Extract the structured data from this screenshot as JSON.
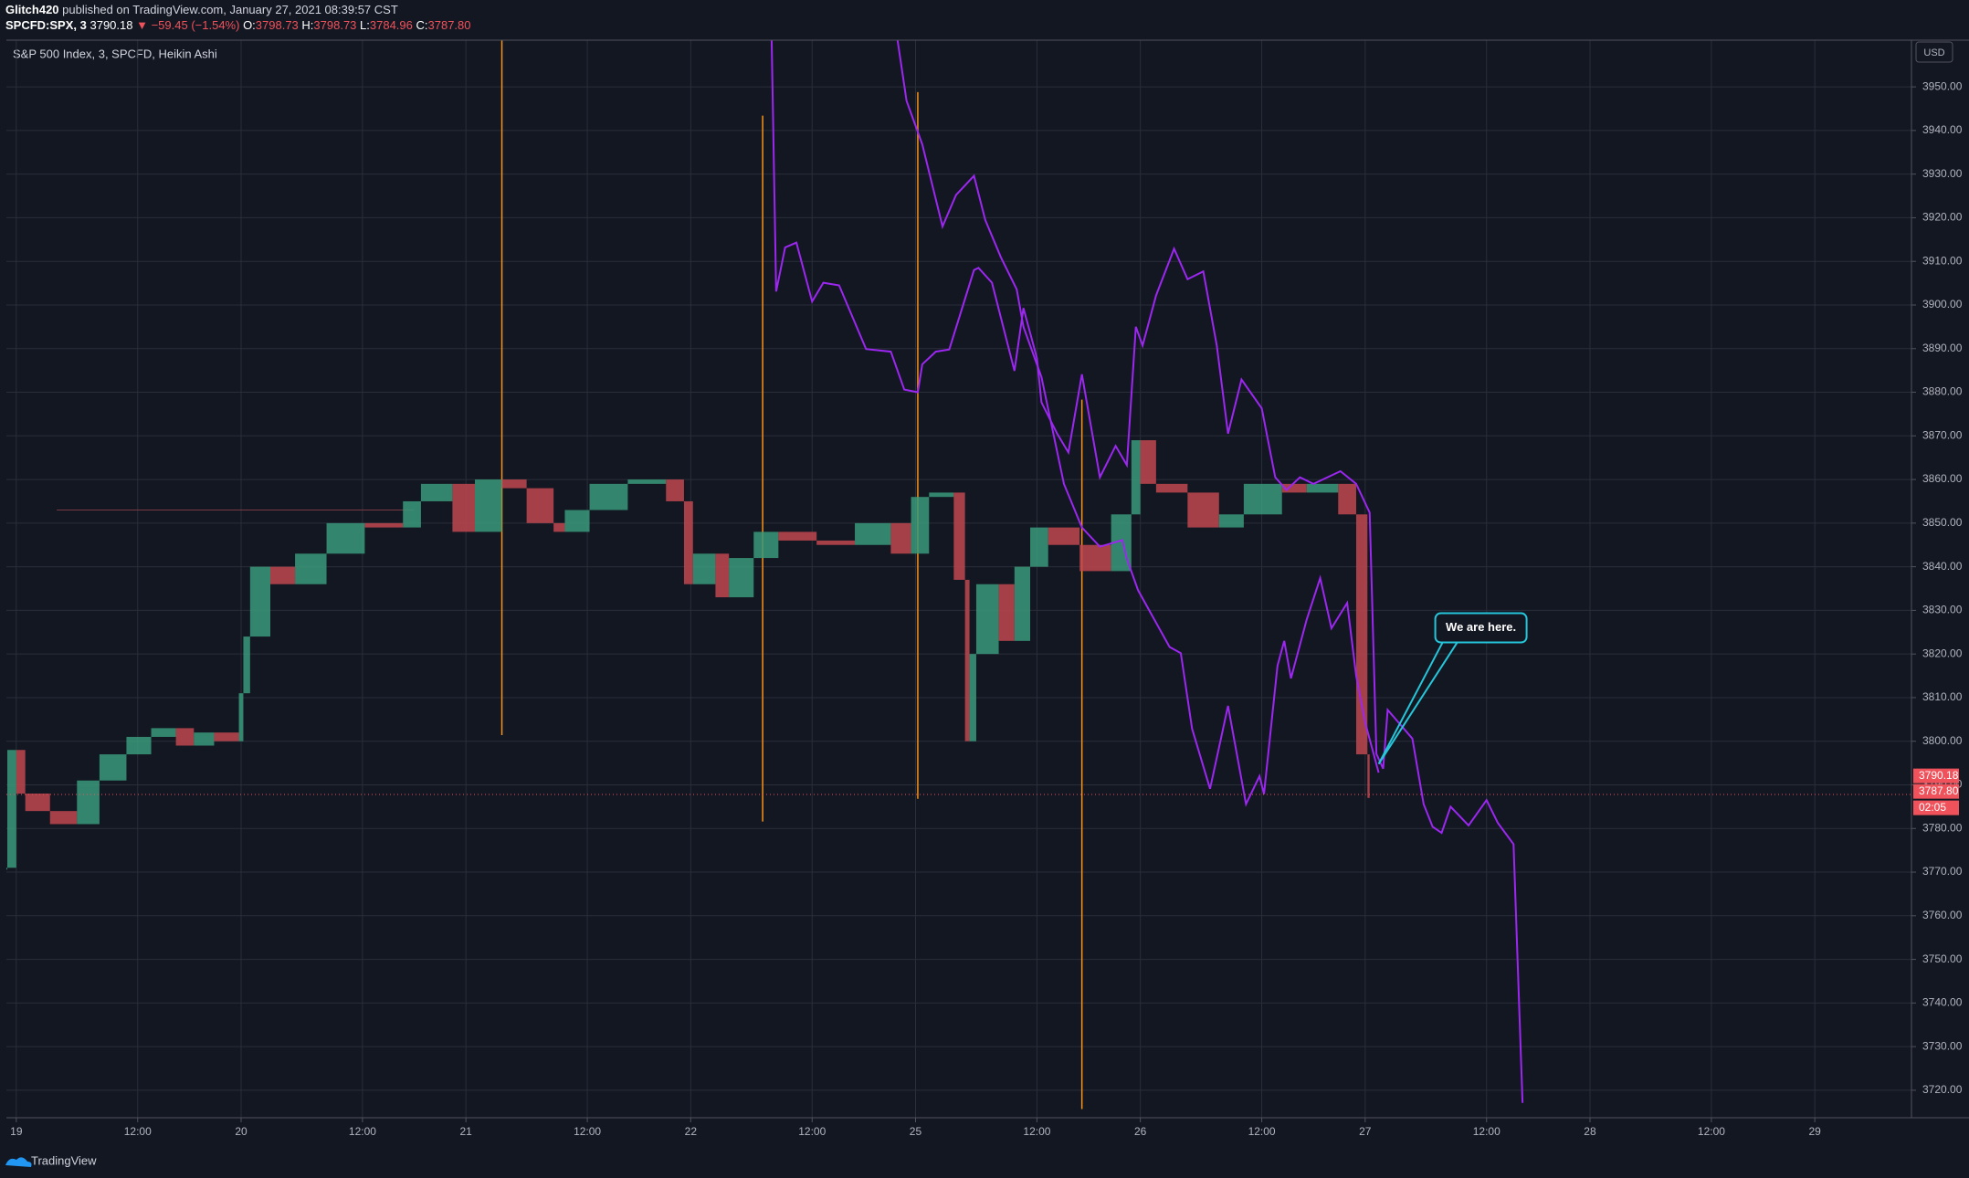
{
  "header": {
    "publisher": "Glitch420",
    "published": "published on TradingView.com, January 27, 2021 08:39:57 CST",
    "symbol": "SPCFD:SPX, 3",
    "price": "3790.18",
    "change": "▼ −59.45 (−1.54%)",
    "ohlc": [
      {
        "label": "O:",
        "value": "3798.73"
      },
      {
        "label": "H:",
        "value": "3798.73"
      },
      {
        "label": "L:",
        "value": "3784.96"
      },
      {
        "label": "C:",
        "value": "3787.80"
      }
    ]
  },
  "footer": {
    "brand": "TradingView"
  },
  "chart_data": {
    "type": "candlestick",
    "title": "S&P 500 Index, 3, SPCFD, Heikin Ashi",
    "currency": "USD",
    "grid": true,
    "up_color": "#3a9a7a",
    "down_color": "#c0474f",
    "xlim": [
      -0.044,
      8.43
    ],
    "ylim": [
      3713.7,
      3960.7
    ],
    "xticks": [
      {
        "value": 0,
        "label": "19"
      },
      {
        "value": 0.54,
        "label": "12:00"
      },
      {
        "value": 1,
        "label": "20"
      },
      {
        "value": 1.54,
        "label": "12:00"
      },
      {
        "value": 2,
        "label": "21"
      },
      {
        "value": 2.54,
        "label": "12:00"
      },
      {
        "value": 3,
        "label": "22"
      },
      {
        "value": 3.54,
        "label": "12:00"
      },
      {
        "value": 4,
        "label": "25"
      },
      {
        "value": 4.54,
        "label": "12:00"
      },
      {
        "value": 5,
        "label": "26"
      },
      {
        "value": 5.54,
        "label": "12:00"
      },
      {
        "value": 6,
        "label": "27"
      },
      {
        "value": 6.54,
        "label": "12:00"
      },
      {
        "value": 7,
        "label": "28"
      },
      {
        "value": 7.54,
        "label": "12:00"
      },
      {
        "value": 8,
        "label": "29"
      }
    ],
    "yticks": [
      {
        "value": 3720,
        "label": "3720.00"
      },
      {
        "value": 3730,
        "label": "3730.00"
      },
      {
        "value": 3740,
        "label": "3740.00"
      },
      {
        "value": 3750,
        "label": "3750.00"
      },
      {
        "value": 3760,
        "label": "3760.00"
      },
      {
        "value": 3770,
        "label": "3770.00"
      },
      {
        "value": 3780,
        "label": "3780.00"
      },
      {
        "value": 3790,
        "label": "3790.00"
      },
      {
        "value": 3800,
        "label": "3800.00"
      },
      {
        "value": 3810,
        "label": "3810.00"
      },
      {
        "value": 3820,
        "label": "3820.00"
      },
      {
        "value": 3830,
        "label": "3830.00"
      },
      {
        "value": 3840,
        "label": "3840.00"
      },
      {
        "value": 3850,
        "label": "3850.00"
      },
      {
        "value": 3860,
        "label": "3860.00"
      },
      {
        "value": 3870,
        "label": "3870.00"
      },
      {
        "value": 3880,
        "label": "3880.00"
      },
      {
        "value": 3890,
        "label": "3890.00"
      },
      {
        "value": 3900,
        "label": "3900.00"
      },
      {
        "value": 3910,
        "label": "3910.00"
      },
      {
        "value": 3920,
        "label": "3920.00"
      },
      {
        "value": 3930,
        "label": "3930.00"
      },
      {
        "value": 3940,
        "label": "3940.00"
      },
      {
        "value": 3950,
        "label": "3950.00"
      }
    ],
    "series": [
      {
        "kind": "candles",
        "x": [
          -0.04,
          0,
          0.04,
          0.15,
          0.27,
          0.37,
          0.49,
          0.6,
          0.71,
          0.79,
          0.88,
          0.99,
          1.01,
          1.04,
          1.13,
          1.24,
          1.38,
          1.55,
          1.72,
          1.8,
          1.94,
          2.04,
          2.16,
          2.27,
          2.39,
          2.44,
          2.55,
          2.72,
          2.89,
          2.97,
          3.01,
          3.11,
          3.17,
          3.28,
          3.39,
          3.56,
          3.73,
          3.89,
          3.98,
          4.06,
          4.17,
          4.22,
          4.24,
          4.27,
          4.37,
          4.44,
          4.51,
          4.59,
          4.73,
          4.87,
          4.96,
          5.0,
          5.07,
          5.21,
          5.35,
          5.46,
          5.63,
          5.74,
          5.88,
          5.96,
          6.01,
          6.02
        ],
        "values": [
          3771,
          3798,
          3788,
          3784,
          3781,
          3791,
          3797,
          3801,
          3803,
          3799,
          3802,
          3800,
          3811,
          3824,
          3840,
          3836,
          3843,
          3850,
          3849,
          3855,
          3859,
          3848,
          3860,
          3858,
          3850,
          3848,
          3853,
          3859,
          3860,
          3855,
          3836,
          3843,
          3833,
          3842,
          3848,
          3846,
          3845,
          3850,
          3843,
          3856,
          3857,
          3837,
          3800,
          3820,
          3836,
          3823,
          3840,
          3849,
          3845,
          3839,
          3852,
          3869,
          3859,
          3857,
          3849,
          3852,
          3859,
          3857,
          3859,
          3852,
          3797,
          3787
        ]
      },
      {
        "kind": "line",
        "color": "#9c27f0",
        "x": [
          3.36,
          3.38,
          3.42,
          3.47,
          3.54,
          3.59,
          3.66,
          3.78,
          3.89,
          3.95,
          4.01,
          4.03,
          4.09,
          4.15,
          4.26,
          4.28,
          4.34,
          4.44,
          4.48,
          4.54,
          4.56,
          4.63,
          4.68,
          4.74,
          4.82,
          4.89,
          4.94,
          4.98,
          5.01,
          5.07,
          5.15,
          5.21,
          5.28,
          5.34,
          5.39,
          5.45,
          5.54,
          5.6,
          5.65,
          5.71,
          5.77,
          5.89,
          5.96,
          6.02,
          6.05,
          6.08,
          6.1,
          6.21,
          6.26,
          6.3,
          6.34,
          6.38,
          6.46,
          6.54,
          6.59,
          6.66,
          6.7
        ],
        "values": [
          3960.7,
          3903.1,
          3913.2,
          3914.3,
          3900.8,
          3905.1,
          3904.5,
          3889.9,
          3889.3,
          3880.6,
          3880.0,
          3886.4,
          3889.3,
          3889.8,
          3908.0,
          3908.5,
          3905.1,
          3884.9,
          3899.3,
          3887.8,
          3877.7,
          3870.5,
          3866.2,
          3884.1,
          3860.5,
          3867.7,
          3863.3,
          3895.0,
          3890.7,
          3902.2,
          3912.9,
          3905.9,
          3907.7,
          3890.7,
          3870.5,
          3882.9,
          3876.3,
          3860.5,
          3857.6,
          3860.5,
          3859.0,
          3861.9,
          3859.0,
          3852.4,
          3797.1,
          3793.7,
          3807.2,
          3800.6,
          3785.6,
          3780.4,
          3779.0,
          3785.0,
          3780.7,
          3786.5,
          3781.3,
          3776.4,
          3717.1
        ]
      },
      {
        "kind": "line",
        "color": "#9c27f0",
        "x": [
          3.92,
          3.96,
          4.03,
          4.12,
          4.18,
          4.26,
          4.31,
          4.38,
          4.45,
          4.48,
          4.56,
          4.66,
          4.74,
          4.82,
          4.92,
          4.94,
          4.99,
          5.13,
          5.18,
          5.23,
          5.31,
          5.39,
          5.47,
          5.53,
          5.55,
          5.61,
          5.64,
          5.67,
          5.74,
          5.8,
          5.85,
          5.92,
          5.96,
          6.0,
          6.06
        ],
        "values": [
          3960.7,
          3946.8,
          3936.8,
          3918.0,
          3925.2,
          3929.6,
          3919.5,
          3910.9,
          3903.6,
          3895.0,
          3883.5,
          3859.0,
          3849.0,
          3844.6,
          3846.1,
          3841.8,
          3834.6,
          3821.6,
          3820.2,
          3802.9,
          3789.1,
          3808.1,
          3785.6,
          3792.0,
          3787.9,
          3817.3,
          3823.0,
          3814.4,
          3827.9,
          3837.4,
          3825.9,
          3831.7,
          3815.0,
          3804.3,
          3792.8
        ]
      }
    ],
    "vertical_lines": {
      "color": "#f7931a",
      "x": [
        2.16,
        3.32,
        4.01,
        4.74
      ],
      "top": [
        3960.7,
        3943.4,
        3948.8,
        3878.3
      ],
      "bottom": [
        3801.4,
        3781.6,
        3786.8,
        3715.7
      ]
    },
    "level_line": {
      "color": "#7a3a44",
      "x": [
        0.18,
        1.77
      ],
      "value": 3853.0
    },
    "last_price": {
      "value": 3790.18,
      "color": "#f0525b"
    },
    "close_price": {
      "value": 3787.8,
      "label": "3787.80"
    },
    "countdown": "02:05",
    "annotation": {
      "text": "We are here.",
      "x": 6.06,
      "y": 3794.8,
      "color": "#26c6da"
    }
  }
}
